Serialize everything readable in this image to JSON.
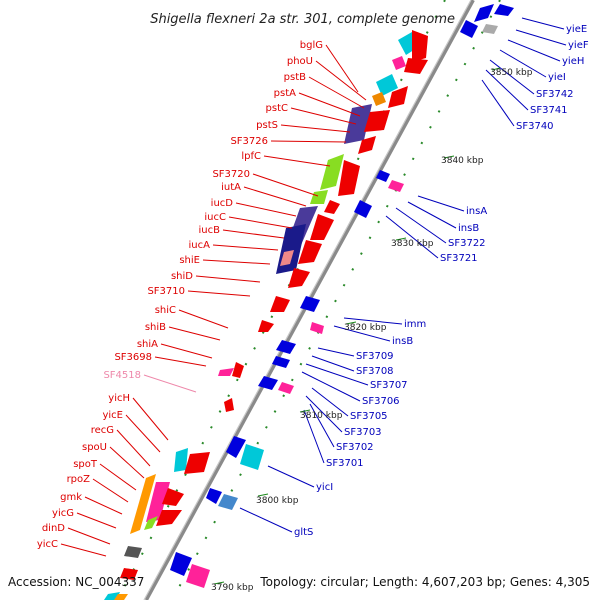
{
  "title": "Shigella flexneri 2a str. 301, complete genome",
  "footer": {
    "accession": "Accession: NC_004337",
    "topology": "Topology: circular; Length: 4,607,203 bp; Genes: 4,305"
  },
  "colors": {
    "forward_label": "#dd0000",
    "reverse_label": "#0000bb",
    "pseudo_label": "#ee88aa",
    "forward_arrow": "#ee0000",
    "reverse_arrow": "#0000dd",
    "axis": "#888888",
    "tick": "#1a8a1a"
  },
  "scale_ticks": [
    {
      "label": "3850 kbp",
      "kbp": 3850
    },
    {
      "label": "3840 kbp",
      "kbp": 3840
    },
    {
      "label": "3830 kbp",
      "kbp": 3830
    },
    {
      "label": "3820 kbp",
      "kbp": 3820
    },
    {
      "label": "3810 kbp",
      "kbp": 3810
    },
    {
      "label": "3800 kbp",
      "kbp": 3800
    },
    {
      "label": "3790 kbp",
      "kbp": 3790
    }
  ],
  "left_genes": [
    {
      "name": "bglG"
    },
    {
      "name": "phoU"
    },
    {
      "name": "pstB"
    },
    {
      "name": "pstA"
    },
    {
      "name": "pstC"
    },
    {
      "name": "pstS"
    },
    {
      "name": "SF3726"
    },
    {
      "name": "lpfC"
    },
    {
      "name": "SF3720"
    },
    {
      "name": "iutA"
    },
    {
      "name": "iucD"
    },
    {
      "name": "iucC"
    },
    {
      "name": "iucB"
    },
    {
      "name": "iucA"
    },
    {
      "name": "shiE"
    },
    {
      "name": "shiD"
    },
    {
      "name": "SF3710"
    },
    {
      "name": "shiC"
    },
    {
      "name": "shiB"
    },
    {
      "name": "shiA"
    },
    {
      "name": "SF3698"
    },
    {
      "name": "SF4518",
      "pseudo": true
    },
    {
      "name": "yicH"
    },
    {
      "name": "yicE"
    },
    {
      "name": "recG"
    },
    {
      "name": "spoU"
    },
    {
      "name": "spoT"
    },
    {
      "name": "rpoZ"
    },
    {
      "name": "gmk"
    },
    {
      "name": "yicG"
    },
    {
      "name": "dinD"
    },
    {
      "name": "yicC"
    }
  ],
  "right_genes": [
    {
      "name": "yieE"
    },
    {
      "name": "yieF"
    },
    {
      "name": "yieH"
    },
    {
      "name": "yieI"
    },
    {
      "name": "SF3742"
    },
    {
      "name": "SF3741"
    },
    {
      "name": "SF3740"
    },
    {
      "name": "insA"
    },
    {
      "name": "insB"
    },
    {
      "name": "SF3722"
    },
    {
      "name": "SF3721"
    },
    {
      "name": "imm"
    },
    {
      "name": "insB"
    },
    {
      "name": "SF3709"
    },
    {
      "name": "SF3708"
    },
    {
      "name": "SF3707"
    },
    {
      "name": "SF3706"
    },
    {
      "name": "SF3705"
    },
    {
      "name": "SF3703"
    },
    {
      "name": "SF3702"
    },
    {
      "name": "SF3701"
    },
    {
      "name": "yicI"
    },
    {
      "name": "gltS"
    }
  ]
}
